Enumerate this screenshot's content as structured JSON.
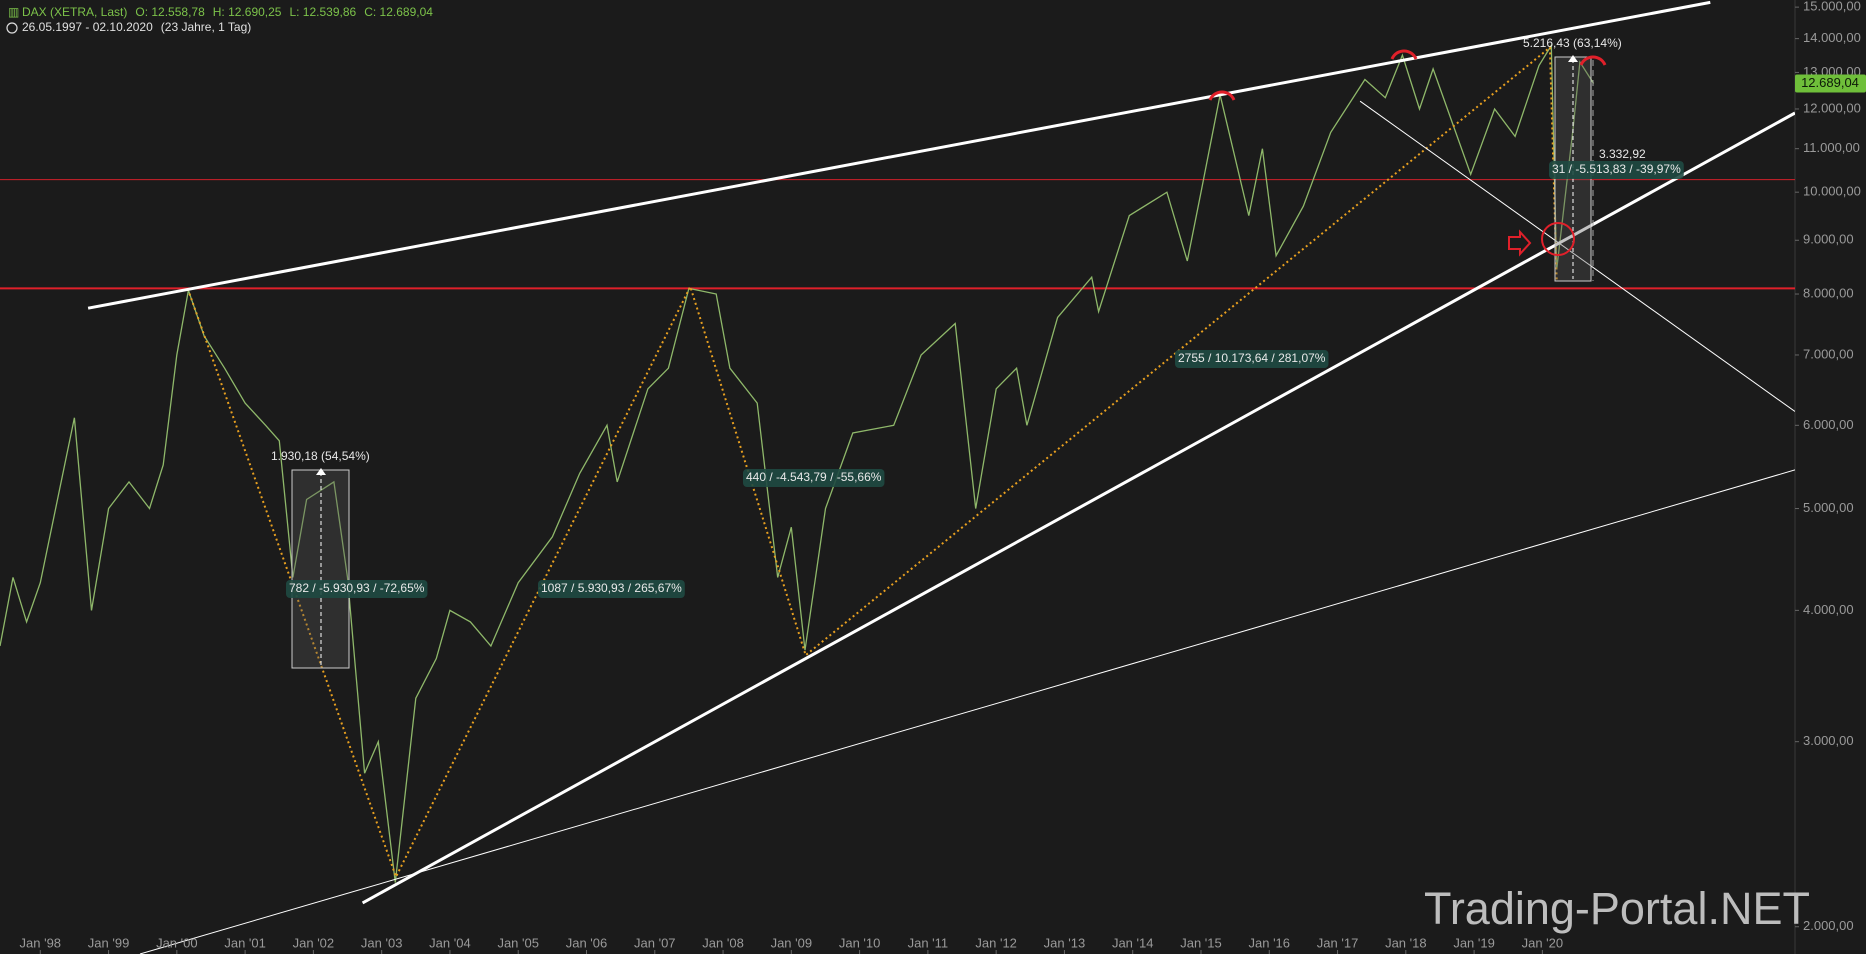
{
  "chart_data": {
    "type": "line",
    "title": "DAX (XETRA, Last)",
    "header": {
      "open": "O: 12.558,78",
      "high": "H: 12.690,25",
      "low": "L: 12.539,86",
      "close": "C: 12.689,04",
      "range": "26.05.1997 - 02.10.2020",
      "span": "(23 Jahre, 1 Tag)"
    },
    "log_scale": true,
    "xlim": [
      1997.41,
      2023.7
    ],
    "ylim": [
      1884,
      15236
    ],
    "xticks": [
      {
        "value": 1998,
        "label": "Jan '98"
      },
      {
        "value": 1999,
        "label": "Jan '99"
      },
      {
        "value": 2000,
        "label": "Jan '00"
      },
      {
        "value": 2001,
        "label": "Jan '01"
      },
      {
        "value": 2002,
        "label": "Jan '02"
      },
      {
        "value": 2003,
        "label": "Jan '03"
      },
      {
        "value": 2004,
        "label": "Jan '04"
      },
      {
        "value": 2005,
        "label": "Jan '05"
      },
      {
        "value": 2006,
        "label": "Jan '06"
      },
      {
        "value": 2007,
        "label": "Jan '07"
      },
      {
        "value": 2008,
        "label": "Jan '08"
      },
      {
        "value": 2009,
        "label": "Jan '09"
      },
      {
        "value": 2010,
        "label": "Jan '10"
      },
      {
        "value": 2011,
        "label": "Jan '11"
      },
      {
        "value": 2012,
        "label": "Jan '12"
      },
      {
        "value": 2013,
        "label": "Jan '13"
      },
      {
        "value": 2014,
        "label": "Jan '14"
      },
      {
        "value": 2015,
        "label": "Jan '15"
      },
      {
        "value": 2016,
        "label": "Jan '16"
      },
      {
        "value": 2017,
        "label": "Jan '17"
      },
      {
        "value": 2018,
        "label": "Jan '18"
      },
      {
        "value": 2019,
        "label": "Jan '19"
      },
      {
        "value": 2020,
        "label": "Jan '20"
      }
    ],
    "yticks": [
      {
        "value": 2000,
        "label": "2.000,00"
      },
      {
        "value": 3000,
        "label": "3.000,00"
      },
      {
        "value": 4000,
        "label": "4.000,00"
      },
      {
        "value": 5000,
        "label": "5.000,00"
      },
      {
        "value": 6000,
        "label": "6.000,00"
      },
      {
        "value": 7000,
        "label": "7.000,00"
      },
      {
        "value": 8000,
        "label": "8.000,00"
      },
      {
        "value": 9000,
        "label": "9.000,00"
      },
      {
        "value": 10000,
        "label": "10.000,00"
      },
      {
        "value": 11000,
        "label": "11.000,00"
      },
      {
        "value": 12000,
        "label": "12.000,00"
      },
      {
        "value": 13000,
        "label": "13.000,00"
      },
      {
        "value": 14000,
        "label": "14.000,00"
      },
      {
        "value": 15000,
        "label": "15.000,00"
      }
    ],
    "series": [
      {
        "name": "DAX",
        "color": "#8fb86a",
        "x": [
          1997.41,
          1997.6,
          1997.8,
          1998.0,
          1998.5,
          1998.75,
          1999.0,
          1999.3,
          1999.6,
          1999.8,
          2000.0,
          2000.17,
          2000.4,
          2000.7,
          2001.0,
          2001.3,
          2001.5,
          2001.7,
          2001.9,
          2002.3,
          2002.5,
          2002.75,
          2002.95,
          2003.2,
          2003.5,
          2003.8,
          2004.0,
          2004.3,
          2004.6,
          2005.0,
          2005.5,
          2005.9,
          2006.3,
          2006.45,
          2006.9,
          2007.2,
          2007.5,
          2007.9,
          2008.1,
          2008.5,
          2008.8,
          2009.0,
          2009.2,
          2009.5,
          2009.9,
          2010.5,
          2010.9,
          2011.4,
          2011.7,
          2012.0,
          2012.3,
          2012.45,
          2012.9,
          2013.4,
          2013.5,
          2013.95,
          2014.5,
          2014.8,
          2015.0,
          2015.28,
          2015.7,
          2015.9,
          2016.1,
          2016.5,
          2016.9,
          2017.4,
          2017.7,
          2017.95,
          2018.2,
          2018.4,
          2018.95,
          2019.3,
          2019.6,
          2019.95,
          2020.13,
          2020.21,
          2020.45,
          2020.55,
          2020.75
        ],
        "values": [
          3700,
          4300,
          3900,
          4250,
          6100,
          4000,
          5000,
          5300,
          5000,
          5500,
          7000,
          8065,
          7300,
          6800,
          6300,
          6000,
          5800,
          4300,
          5100,
          5300,
          4300,
          2800,
          3000,
          2203,
          3300,
          3600,
          4000,
          3900,
          3700,
          4250,
          4700,
          5400,
          6000,
          5300,
          6500,
          6800,
          8100,
          8000,
          6800,
          6300,
          4300,
          4800,
          3666,
          5000,
          5900,
          6000,
          7000,
          7500,
          5000,
          6500,
          6800,
          6000,
          7600,
          8300,
          7700,
          9500,
          10000,
          8600,
          10000,
          12375,
          9500,
          11000,
          8700,
          9700,
          11400,
          12800,
          12300,
          13500,
          12000,
          13100,
          10400,
          12000,
          11300,
          13200,
          13789,
          8441,
          11500,
          13300,
          12689.04
        ]
      }
    ],
    "last_price": {
      "value": 12689.04,
      "label": "12.689,04"
    },
    "hlines": [
      {
        "value": 10280,
        "color": "#d0202a",
        "width": 1
      },
      {
        "value": 8100,
        "color": "#e0202a",
        "width": 2
      }
    ],
    "trendlines": [
      {
        "x": [
          1998.7,
          2022.46
        ],
        "values": [
          7755,
          15157
        ],
        "color": "#ffffff",
        "width": 3
      },
      {
        "x": [
          2002.72,
          2023.7
        ],
        "values": [
          2107,
          11895
        ],
        "color": "#ffffff",
        "width": 3
      },
      {
        "x": [
          1999.46,
          2023.7
        ],
        "values": [
          1884,
          5442
        ],
        "color": "#ffffff",
        "width": 1
      },
      {
        "x": [
          2017.33,
          2023.7
        ],
        "values": [
          12205,
          6184
        ],
        "color": "#ffffff",
        "width": 1
      }
    ],
    "zigzag": {
      "color": "#e8a020",
      "x": [
        2000.16,
        2003.21,
        2007.52,
        2009.21,
        2020.11,
        2020.21
      ],
      "values": [
        8090,
        2231,
        8130,
        3626,
        13730,
        8250
      ]
    },
    "annotations": [
      "1.930,18 (54,54%)",
      "782 / -5.930,93 / -72,65%",
      "1087 / 5.930,93 / 265,67%",
      "440 / -4.543,79 / -55,66%",
      "2755 / 10.173,64 / 281,07%",
      "5.216,43 (63,14%)",
      "3.332,92",
      "31 / -5.513,83 / -39,97%"
    ],
    "watermark": "Trading-Portal.NET"
  }
}
